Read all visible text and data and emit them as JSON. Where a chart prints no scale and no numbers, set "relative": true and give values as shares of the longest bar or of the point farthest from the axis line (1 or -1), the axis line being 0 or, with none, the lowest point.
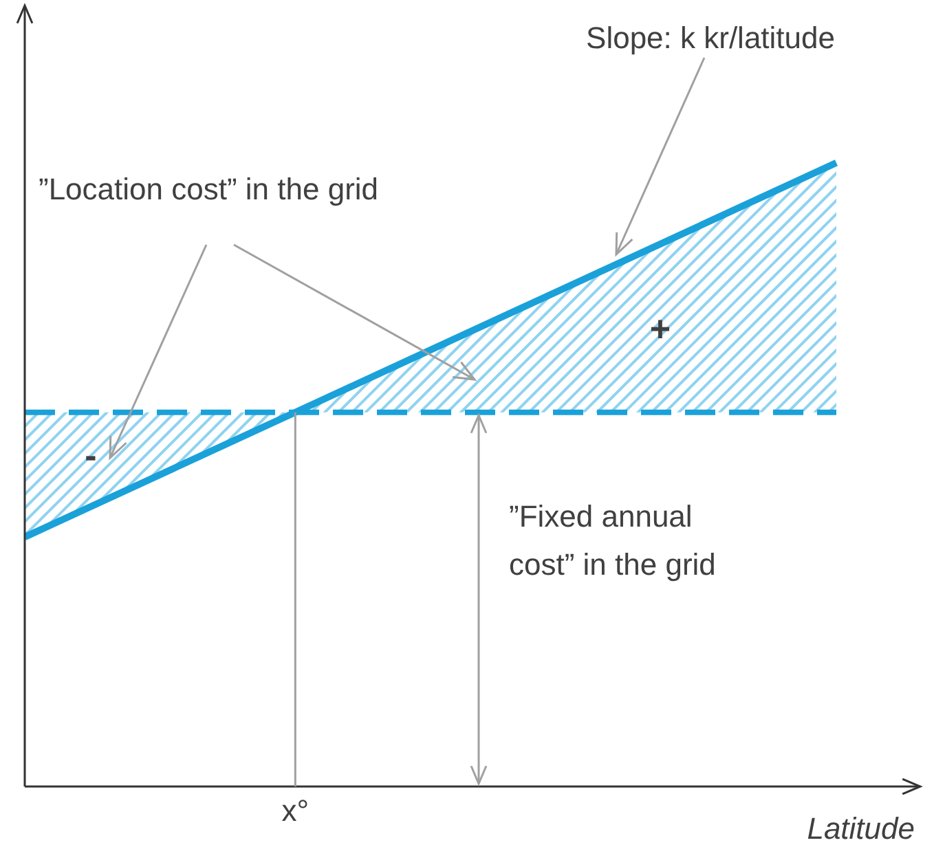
{
  "chart_data": {
    "type": "line",
    "relative": true,
    "xlabel": "Latitude",
    "categories": [
      null,
      null,
      null,
      null
    ],
    "series": [
      {
        "color": "#1ba1d9",
        "values": [
          0.4,
          0.6,
          0.8,
          1.0
        ],
        "lower": [
          0.4,
          0.6,
          0.6,
          0.6
        ],
        "upper": [
          0.6,
          0.6,
          0.8,
          1.0
        ],
        "line_style": "solid"
      },
      {
        "color": "#1ba1d9",
        "values": [
          0.6,
          0.6,
          0.6,
          0.6
        ],
        "line_style": "dashed"
      }
    ],
    "annotations": [
      "Slope: k kr/latitude",
      "”Location cost” in the grid",
      "+",
      "-",
      "”Fixed annual cost” in the grid",
      "x°"
    ],
    "grid": false,
    "marker": "none"
  }
}
